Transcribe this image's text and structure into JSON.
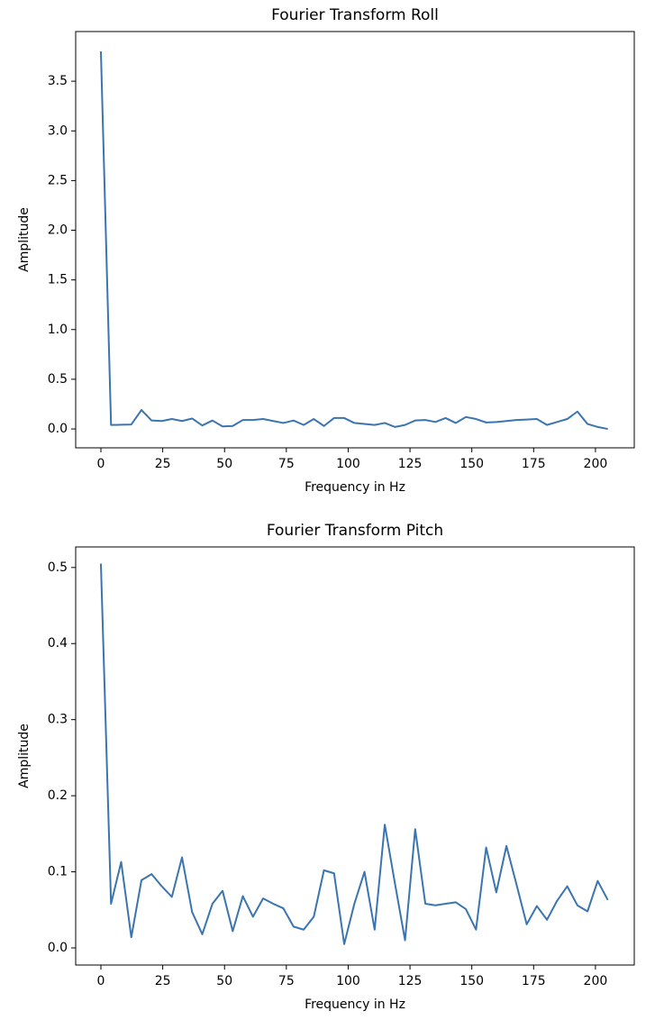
{
  "chart_data": [
    {
      "type": "line",
      "title": "Fourier Transform Roll",
      "xlabel": "Frequency in Hz",
      "ylabel": "Amplitude",
      "color": "#3a75b0",
      "x": [
        0,
        4.1,
        8.2,
        12.3,
        16.4,
        20.5,
        24.6,
        28.7,
        32.8,
        36.9,
        41,
        45.1,
        49.2,
        53.3,
        57.4,
        61.5,
        65.6,
        69.7,
        73.8,
        77.9,
        82,
        86.1,
        90.2,
        94.3,
        98.4,
        102.5,
        106.6,
        110.7,
        114.8,
        118.9,
        123,
        127.1,
        131.2,
        135.3,
        139.4,
        143.5,
        147.6,
        151.7,
        155.8,
        159.9,
        164,
        168.1,
        172.2,
        176.3,
        180.4,
        184.5,
        188.6,
        192.7,
        196.8,
        200.9,
        205
      ],
      "values": [
        3.8,
        0.04,
        0.042,
        0.045,
        0.19,
        0.085,
        0.08,
        0.1,
        0.08,
        0.105,
        0.035,
        0.085,
        0.025,
        0.03,
        0.09,
        0.09,
        0.1,
        0.08,
        0.06,
        0.085,
        0.04,
        0.1,
        0.03,
        0.11,
        0.11,
        0.06,
        0.05,
        0.04,
        0.06,
        0.02,
        0.04,
        0.085,
        0.09,
        0.07,
        0.11,
        0.06,
        0.12,
        0.1,
        0.065,
        0.07,
        0.08,
        0.09,
        0.095,
        0.1,
        0.04,
        0.07,
        0.1,
        0.175,
        0.05,
        0.02,
        0.0
      ],
      "xlim": [
        -10.2,
        215.7
      ],
      "ylim": [
        -0.19,
        4.0
      ],
      "xticks": [
        0,
        25,
        50,
        75,
        100,
        125,
        150,
        175,
        200
      ],
      "yticks": [
        {
          "value": 0,
          "label": "0.0"
        },
        0.5,
        {
          "value": 1,
          "label": "1.0"
        },
        1.5,
        {
          "value": 2,
          "label": "2.0"
        },
        2.5,
        {
          "value": 3,
          "label": "3.0"
        },
        3.5
      ]
    },
    {
      "type": "line",
      "title": "Fourier Transform Pitch",
      "xlabel": "Frequency in Hz",
      "ylabel": "Amplitude",
      "color": "#3a75b0",
      "x": [
        0,
        4.1,
        8.2,
        12.3,
        16.4,
        20.5,
        24.6,
        28.7,
        32.8,
        36.9,
        41,
        45.1,
        49.2,
        53.3,
        57.4,
        61.5,
        65.6,
        69.7,
        73.8,
        77.9,
        82,
        86.1,
        90.2,
        94.3,
        98.4,
        102.5,
        106.6,
        110.7,
        114.8,
        118.9,
        123,
        127.1,
        131.2,
        135.3,
        139.4,
        143.5,
        147.6,
        151.7,
        155.8,
        159.9,
        164,
        168.1,
        172.2,
        176.3,
        180.4,
        184.5,
        188.6,
        192.7,
        196.8,
        200.9,
        205
      ],
      "values": [
        0.505,
        0.058,
        0.113,
        0.014,
        0.089,
        0.097,
        0.081,
        0.067,
        0.119,
        0.047,
        0.018,
        0.058,
        0.075,
        0.022,
        0.068,
        0.041,
        0.065,
        0.058,
        0.052,
        0.028,
        0.024,
        0.041,
        0.102,
        0.098,
        0.005,
        0.058,
        0.1,
        0.024,
        0.162,
        0.085,
        0.01,
        0.156,
        0.058,
        0.056,
        0.058,
        0.06,
        0.051,
        0.024,
        0.132,
        0.073,
        0.134,
        0.083,
        0.031,
        0.055,
        0.037,
        0.062,
        0.081,
        0.056,
        0.048,
        0.088,
        0.063
      ],
      "xlim": [
        -10.2,
        215.7
      ],
      "ylim": [
        -0.0225,
        0.527
      ],
      "xticks": [
        0,
        25,
        50,
        75,
        100,
        125,
        150,
        175,
        200
      ],
      "yticks": [
        {
          "value": 0,
          "label": "0.0"
        },
        0.1,
        0.2,
        0.3,
        0.4,
        0.5
      ]
    }
  ]
}
